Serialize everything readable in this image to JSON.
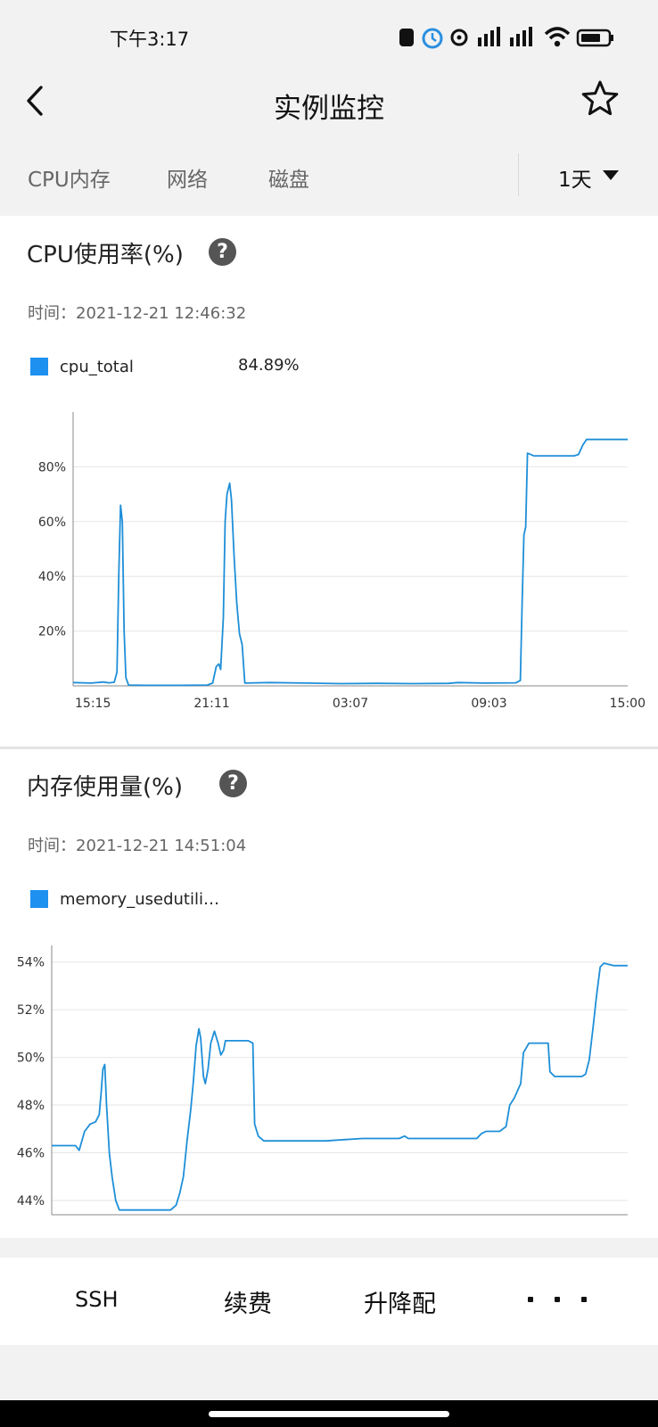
{
  "status_bar": {
    "time": "下午3:17"
  },
  "header": {
    "title": "实例监控"
  },
  "tabs": [
    "CPU内存",
    "网络",
    "磁盘"
  ],
  "range_selector": {
    "value": "1天"
  },
  "cpu_chart": {
    "title": "CPU使用率(%)",
    "time_label": "时间：",
    "time_value": "2021-12-21 12:46:32",
    "legend_name": "cpu_total",
    "legend_value": "84.89%",
    "color": "#1e90f0"
  },
  "mem_chart": {
    "title": "内存使用量(%)",
    "time_label": "时间：",
    "time_value": "2021-12-21 14:51:04",
    "legend_name": "memory_usedutili…",
    "color": "#1e90f0"
  },
  "actions": {
    "ssh": "SSH",
    "renew": "续费",
    "resize": "升降配"
  },
  "chart_data": [
    {
      "type": "line",
      "series": [
        {
          "name": "cpu_total",
          "values": [
            [
              0,
              1.2
            ],
            [
              20,
              1
            ],
            [
              34,
              1.4
            ],
            [
              40,
              1.1
            ],
            [
              46,
              1.3
            ],
            [
              49,
              5
            ],
            [
              51,
              40
            ],
            [
              53,
              66
            ],
            [
              55,
              60
            ],
            [
              57,
              20
            ],
            [
              59,
              3
            ],
            [
              62,
              0.3
            ],
            [
              80,
              0.2
            ],
            [
              120,
              0.2
            ],
            [
              150,
              0.3
            ],
            [
              156,
              1
            ],
            [
              160,
              7
            ],
            [
              163,
              8
            ],
            [
              165,
              6
            ],
            [
              168,
              25
            ],
            [
              170,
              60
            ],
            [
              172,
              70
            ],
            [
              175,
              74
            ],
            [
              177,
              68
            ],
            [
              180,
              47
            ],
            [
              183,
              30
            ],
            [
              186,
              19
            ],
            [
              189,
              15
            ],
            [
              192,
              1
            ],
            [
              220,
              1.2
            ],
            [
              260,
              1
            ],
            [
              300,
              0.8
            ],
            [
              340,
              0.9
            ],
            [
              380,
              0.8
            ],
            [
              420,
              0.9
            ],
            [
              430,
              1.2
            ],
            [
              460,
              1
            ],
            [
              495,
              1.1
            ],
            [
              500,
              2
            ],
            [
              502,
              30
            ],
            [
              504,
              55
            ],
            [
              506,
              58
            ],
            [
              508,
              85
            ],
            [
              515,
              84
            ],
            [
              535,
              84
            ],
            [
              560,
              84
            ],
            [
              565,
              84.5
            ],
            [
              570,
              88
            ],
            [
              574,
              90
            ],
            [
              600,
              90
            ],
            [
              620,
              90
            ]
          ]
        }
      ],
      "x_ticks": [
        "15:15",
        "21:11",
        "03:07",
        "09:03",
        "15:00"
      ],
      "x_range": [
        0,
        620
      ],
      "y_ticks": [
        "20%",
        "40%",
        "60%",
        "80%"
      ],
      "y_range": [
        0,
        100
      ],
      "grid": true
    },
    {
      "type": "line",
      "series": [
        {
          "name": "memory_usedutili…",
          "values": [
            [
              0,
              46.3
            ],
            [
              26,
              46.3
            ],
            [
              30,
              46.1
            ],
            [
              36,
              46.9
            ],
            [
              42,
              47.2
            ],
            [
              48,
              47.3
            ],
            [
              52,
              47.6
            ],
            [
              54,
              48.5
            ],
            [
              56,
              49.5
            ],
            [
              58,
              49.7
            ],
            [
              60,
              48
            ],
            [
              63,
              46
            ],
            [
              66,
              45
            ],
            [
              70,
              44
            ],
            [
              74,
              43.6
            ],
            [
              80,
              43.6
            ],
            [
              110,
              43.6
            ],
            [
              130,
              43.6
            ],
            [
              136,
              43.8
            ],
            [
              140,
              44.3
            ],
            [
              144,
              45
            ],
            [
              148,
              46.5
            ],
            [
              152,
              47.8
            ],
            [
              155,
              49
            ],
            [
              158,
              50.5
            ],
            [
              161,
              51.2
            ],
            [
              163,
              50.8
            ],
            [
              166,
              49.2
            ],
            [
              168,
              48.9
            ],
            [
              171,
              49.5
            ],
            [
              174,
              50.6
            ],
            [
              178,
              51.1
            ],
            [
              182,
              50.6
            ],
            [
              185,
              50.1
            ],
            [
              188,
              50.3
            ],
            [
              190,
              50.7
            ],
            [
              196,
              50.7
            ],
            [
              215,
              50.7
            ],
            [
              220,
              50.6
            ],
            [
              222,
              47.2
            ],
            [
              226,
              46.7
            ],
            [
              232,
              46.5
            ],
            [
              250,
              46.5
            ],
            [
              280,
              46.5
            ],
            [
              300,
              46.5
            ],
            [
              320,
              46.55
            ],
            [
              340,
              46.6
            ],
            [
              360,
              46.6
            ],
            [
              380,
              46.6
            ],
            [
              386,
              46.7
            ],
            [
              390,
              46.6
            ],
            [
              420,
              46.6
            ],
            [
              440,
              46.6
            ],
            [
              465,
              46.6
            ],
            [
              470,
              46.8
            ],
            [
              475,
              46.9
            ],
            [
              490,
              46.9
            ],
            [
              497,
              47.1
            ],
            [
              501,
              48
            ],
            [
              506,
              48.3
            ],
            [
              513,
              48.9
            ],
            [
              516,
              50.2
            ],
            [
              522,
              50.6
            ],
            [
              535,
              50.6
            ],
            [
              540,
              50.6
            ],
            [
              543,
              50.6
            ],
            [
              545,
              49.4
            ],
            [
              550,
              49.2
            ],
            [
              560,
              49.2
            ],
            [
              580,
              49.2
            ],
            [
              584,
              49.3
            ],
            [
              588,
              49.9
            ],
            [
              592,
              51.2
            ],
            [
              596,
              52.6
            ],
            [
              600,
              53.8
            ],
            [
              604,
              53.95
            ],
            [
              615,
              53.85
            ],
            [
              630,
              53.85
            ]
          ]
        }
      ],
      "y_ticks": [
        "44%",
        "46%",
        "48%",
        "50%",
        "52%",
        "54%"
      ],
      "x_range": [
        0,
        630
      ],
      "y_range": [
        43.4,
        54.7
      ],
      "grid": true
    }
  ]
}
